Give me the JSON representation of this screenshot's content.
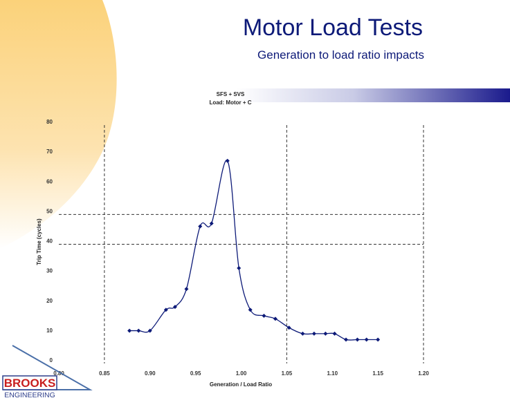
{
  "slide": {
    "title": "Motor Load Tests",
    "subtitle": "Generation to load ratio impacts"
  },
  "logo": {
    "name": "BROOKS",
    "tagline": "ENGINEERING"
  },
  "colors": {
    "title": "#0d1a78",
    "series": "#0d1a78",
    "swoosh": "#fbd27a"
  },
  "chart_data": {
    "type": "line",
    "title_lines": [
      "SFS + SVS",
      "Load: Motor + C"
    ],
    "xlabel": "Generation / Load Ratio",
    "ylabel": "Trip Time (cycles)",
    "xlim": [
      0.8,
      1.2
    ],
    "ylim": [
      0,
      80
    ],
    "x_ticks": [
      "0.80",
      "0.85",
      "0.90",
      "0.95",
      "1.00",
      "1.05",
      "1.10",
      "1.15",
      "1.20"
    ],
    "y_ticks": [
      "0",
      "10",
      "20",
      "30",
      "40",
      "50",
      "60",
      "70",
      "80"
    ],
    "grid": false,
    "legend": "none",
    "series": [
      {
        "x": [
          0.8775,
          0.8875,
          0.9,
          0.9175,
          0.9275,
          0.94,
          0.955,
          0.9675,
          0.985,
          0.9975,
          1.01,
          1.025,
          1.0375,
          1.0525,
          1.0675,
          1.08,
          1.0925,
          1.1025,
          1.115,
          1.1275,
          1.1375,
          1.15
        ],
        "y": [
          11,
          11,
          11,
          18,
          19,
          25,
          46,
          47,
          68,
          32,
          18,
          16,
          15,
          12,
          10,
          10,
          10,
          10,
          8,
          8,
          8,
          8
        ],
        "marker": "diamond"
      }
    ],
    "reference_lines": {
      "vertical": [
        0.85,
        1.05,
        1.2
      ],
      "horizontal": [
        40,
        50
      ]
    }
  }
}
